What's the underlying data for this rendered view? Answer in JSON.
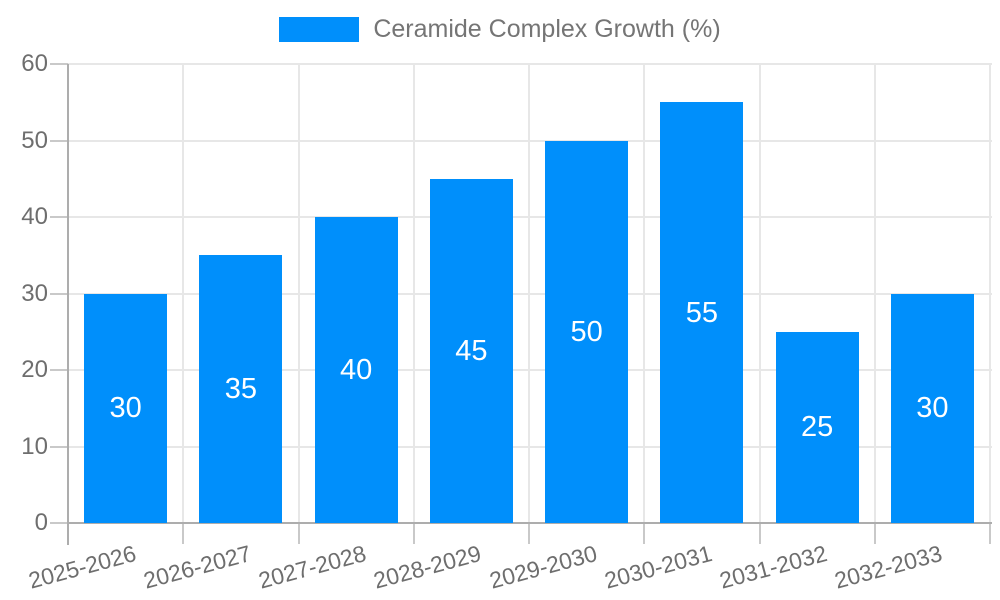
{
  "chart_data": {
    "type": "bar",
    "title": "",
    "categories": [
      "2025-2026",
      "2026-2027",
      "2027-2028",
      "2028-2029",
      "2029-2030",
      "2030-2031",
      "2031-2032",
      "2032-2033"
    ],
    "series": [
      {
        "name": "Ceramide Complex Growth (%)",
        "values": [
          30,
          35,
          40,
          45,
          50,
          55,
          25,
          30
        ]
      }
    ],
    "xlabel": "",
    "ylabel": "",
    "ylim": [
      0,
      60
    ],
    "yticks": [
      0,
      10,
      20,
      30,
      40,
      50,
      60
    ],
    "grid": true,
    "legend_position": "top-center",
    "bar_value_labels_shown": true,
    "x_label_rotation_deg": -15,
    "colors": {
      "bar": "#008FFB",
      "value_label": "#ffffff",
      "axis_text": "#6e6e6e",
      "legend_text": "#757575",
      "grid": "#e7e7e7",
      "tick": "#c9c9c9",
      "axis_line": "#adadad",
      "background": "#ffffff"
    }
  }
}
